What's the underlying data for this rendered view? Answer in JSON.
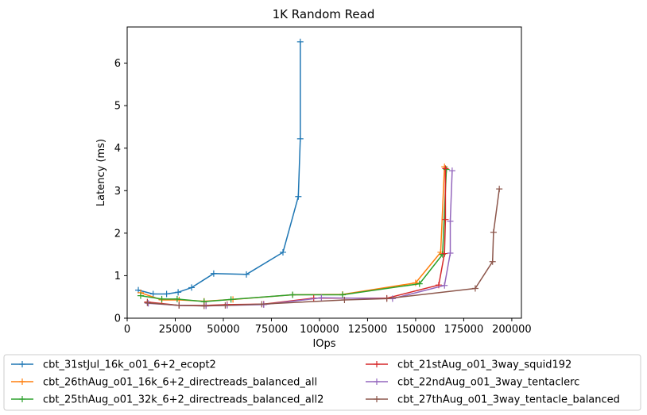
{
  "chart_data": {
    "type": "line",
    "title": "1K  Random Read",
    "xlabel": "IOps",
    "ylabel": "Latency (ms)",
    "xlim": [
      0,
      205000
    ],
    "ylim": [
      0,
      6.85
    ],
    "x_ticks": [
      0,
      25000,
      50000,
      75000,
      100000,
      125000,
      150000,
      175000,
      200000
    ],
    "y_ticks": [
      0,
      1,
      2,
      3,
      4,
      5,
      6
    ],
    "grid": false,
    "legend_position": "below",
    "series": [
      {
        "name": "cbt_31stJul_16k_o01_6+2_ecopt2",
        "color": "#1f77b4",
        "points": [
          [
            5800,
            0.66
          ],
          [
            13500,
            0.57
          ],
          [
            20500,
            0.57
          ],
          [
            26500,
            0.61
          ],
          [
            33500,
            0.72
          ],
          [
            45000,
            1.05
          ],
          [
            62000,
            1.03
          ],
          [
            81000,
            1.55
          ],
          [
            89000,
            2.86
          ],
          [
            90000,
            4.22
          ],
          [
            90000,
            6.5
          ]
        ]
      },
      {
        "name": "cbt_26thAug_o01_16k_6+2_directreads_balanced_all",
        "color": "#ff7f0e",
        "points": [
          [
            7000,
            0.6
          ],
          [
            18000,
            0.43
          ],
          [
            27000,
            0.43
          ],
          [
            40000,
            0.4
          ],
          [
            55000,
            0.44
          ],
          [
            86000,
            0.55
          ],
          [
            112000,
            0.56
          ],
          [
            150000,
            0.83
          ],
          [
            163000,
            1.55
          ],
          [
            165000,
            3.56
          ]
        ]
      },
      {
        "name": "cbt_25thAug_o01_32k_6+2_directreads_balanced_all2",
        "color": "#2ca02c",
        "points": [
          [
            7000,
            0.53
          ],
          [
            18000,
            0.45
          ],
          [
            26000,
            0.45
          ],
          [
            40000,
            0.39
          ],
          [
            54000,
            0.44
          ],
          [
            86000,
            0.55
          ],
          [
            112000,
            0.55
          ],
          [
            152000,
            0.81
          ],
          [
            164000,
            1.5
          ],
          [
            166000,
            3.5
          ]
        ]
      },
      {
        "name": "cbt_21stAug_o01_3way_squid192",
        "color": "#d62728",
        "points": [
          [
            10500,
            0.38
          ],
          [
            27000,
            0.3
          ],
          [
            41000,
            0.3
          ],
          [
            52000,
            0.32
          ],
          [
            71000,
            0.33
          ],
          [
            97000,
            0.47
          ],
          [
            135000,
            0.47
          ],
          [
            162000,
            0.78
          ],
          [
            165000,
            1.52
          ],
          [
            165500,
            2.32
          ],
          [
            165500,
            3.52
          ]
        ]
      },
      {
        "name": "cbt_22ndAug_o01_3way_tentaclerc",
        "color": "#9467bd",
        "points": [
          [
            11000,
            0.35
          ],
          [
            27000,
            0.3
          ],
          [
            41000,
            0.29
          ],
          [
            52000,
            0.3
          ],
          [
            71000,
            0.32
          ],
          [
            101000,
            0.48
          ],
          [
            138000,
            0.46
          ],
          [
            165000,
            0.77
          ],
          [
            168000,
            1.53
          ],
          [
            168000,
            2.28
          ],
          [
            169000,
            3.47
          ]
        ]
      },
      {
        "name": "cbt_27thAug_o01_3way_tentacle_balanced",
        "color": "#8c564b",
        "points": [
          [
            10500,
            0.36
          ],
          [
            27000,
            0.3
          ],
          [
            40000,
            0.29
          ],
          [
            51000,
            0.3
          ],
          [
            70000,
            0.33
          ],
          [
            113000,
            0.43
          ],
          [
            135000,
            0.46
          ],
          [
            181000,
            0.7
          ],
          [
            190000,
            1.33
          ],
          [
            190500,
            2.02
          ],
          [
            193500,
            3.04
          ]
        ]
      }
    ]
  }
}
